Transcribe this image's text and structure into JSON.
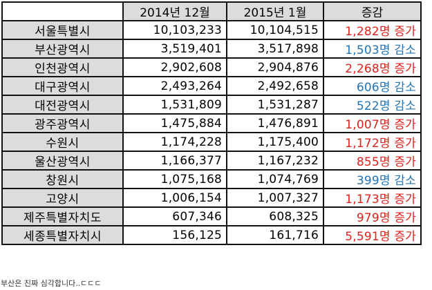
{
  "table": {
    "headers": {
      "corner": "",
      "y2014": "2014년 12월",
      "y2015": "2015년 1월",
      "diff": "증감"
    },
    "colors": {
      "increase": "#e0201b",
      "decrease": "#1f73b7",
      "header_bg": "#dcdcdc",
      "region_bg": "#dcdcdc",
      "border": "#111111"
    },
    "rows": [
      {
        "region": "서울특별시",
        "y2014": "10,103,233",
        "y2015": "10,104,515",
        "diff": "1,282명 증가",
        "trend": "increase"
      },
      {
        "region": "부산광역시",
        "y2014": "3,519,401",
        "y2015": "3,517,898",
        "diff": "1,503명 감소",
        "trend": "decrease"
      },
      {
        "region": "인천광역시",
        "y2014": "2,902,608",
        "y2015": "2,904,876",
        "diff": "2,268명 증가",
        "trend": "increase"
      },
      {
        "region": "대구광역시",
        "y2014": "2,493,264",
        "y2015": "2,492,658",
        "diff": "606명 감소",
        "trend": "decrease"
      },
      {
        "region": "대전광역시",
        "y2014": "1,531,809",
        "y2015": "1,531,287",
        "diff": "522명 감소",
        "trend": "decrease"
      },
      {
        "region": "광주광역시",
        "y2014": "1,475,884",
        "y2015": "1,476,891",
        "diff": "1,007명 증가",
        "trend": "increase"
      },
      {
        "region": "수원시",
        "y2014": "1,174,228",
        "y2015": "1,175,400",
        "diff": "1,172명 증가",
        "trend": "increase"
      },
      {
        "region": "울산광역시",
        "y2014": "1,166,377",
        "y2015": "1,167,232",
        "diff": "855명 증가",
        "trend": "increase"
      },
      {
        "region": "창원시",
        "y2014": "1,075,168",
        "y2015": "1,074,769",
        "diff": "399명 감소",
        "trend": "decrease"
      },
      {
        "region": "고양시",
        "y2014": "1,006,154",
        "y2015": "1,007,327",
        "diff": "1,173명 증가",
        "trend": "increase"
      },
      {
        "region": "제주특별자치도",
        "y2014": "607,346",
        "y2015": "608,325",
        "diff": "979명 증가",
        "trend": "increase"
      },
      {
        "region": "세종특별자치시",
        "y2014": "156,125",
        "y2015": "161,716",
        "diff": "5,591명 증가",
        "trend": "increase"
      }
    ]
  },
  "caption": "부산은 진짜 심각합니다..ㄷㄷㄷ"
}
